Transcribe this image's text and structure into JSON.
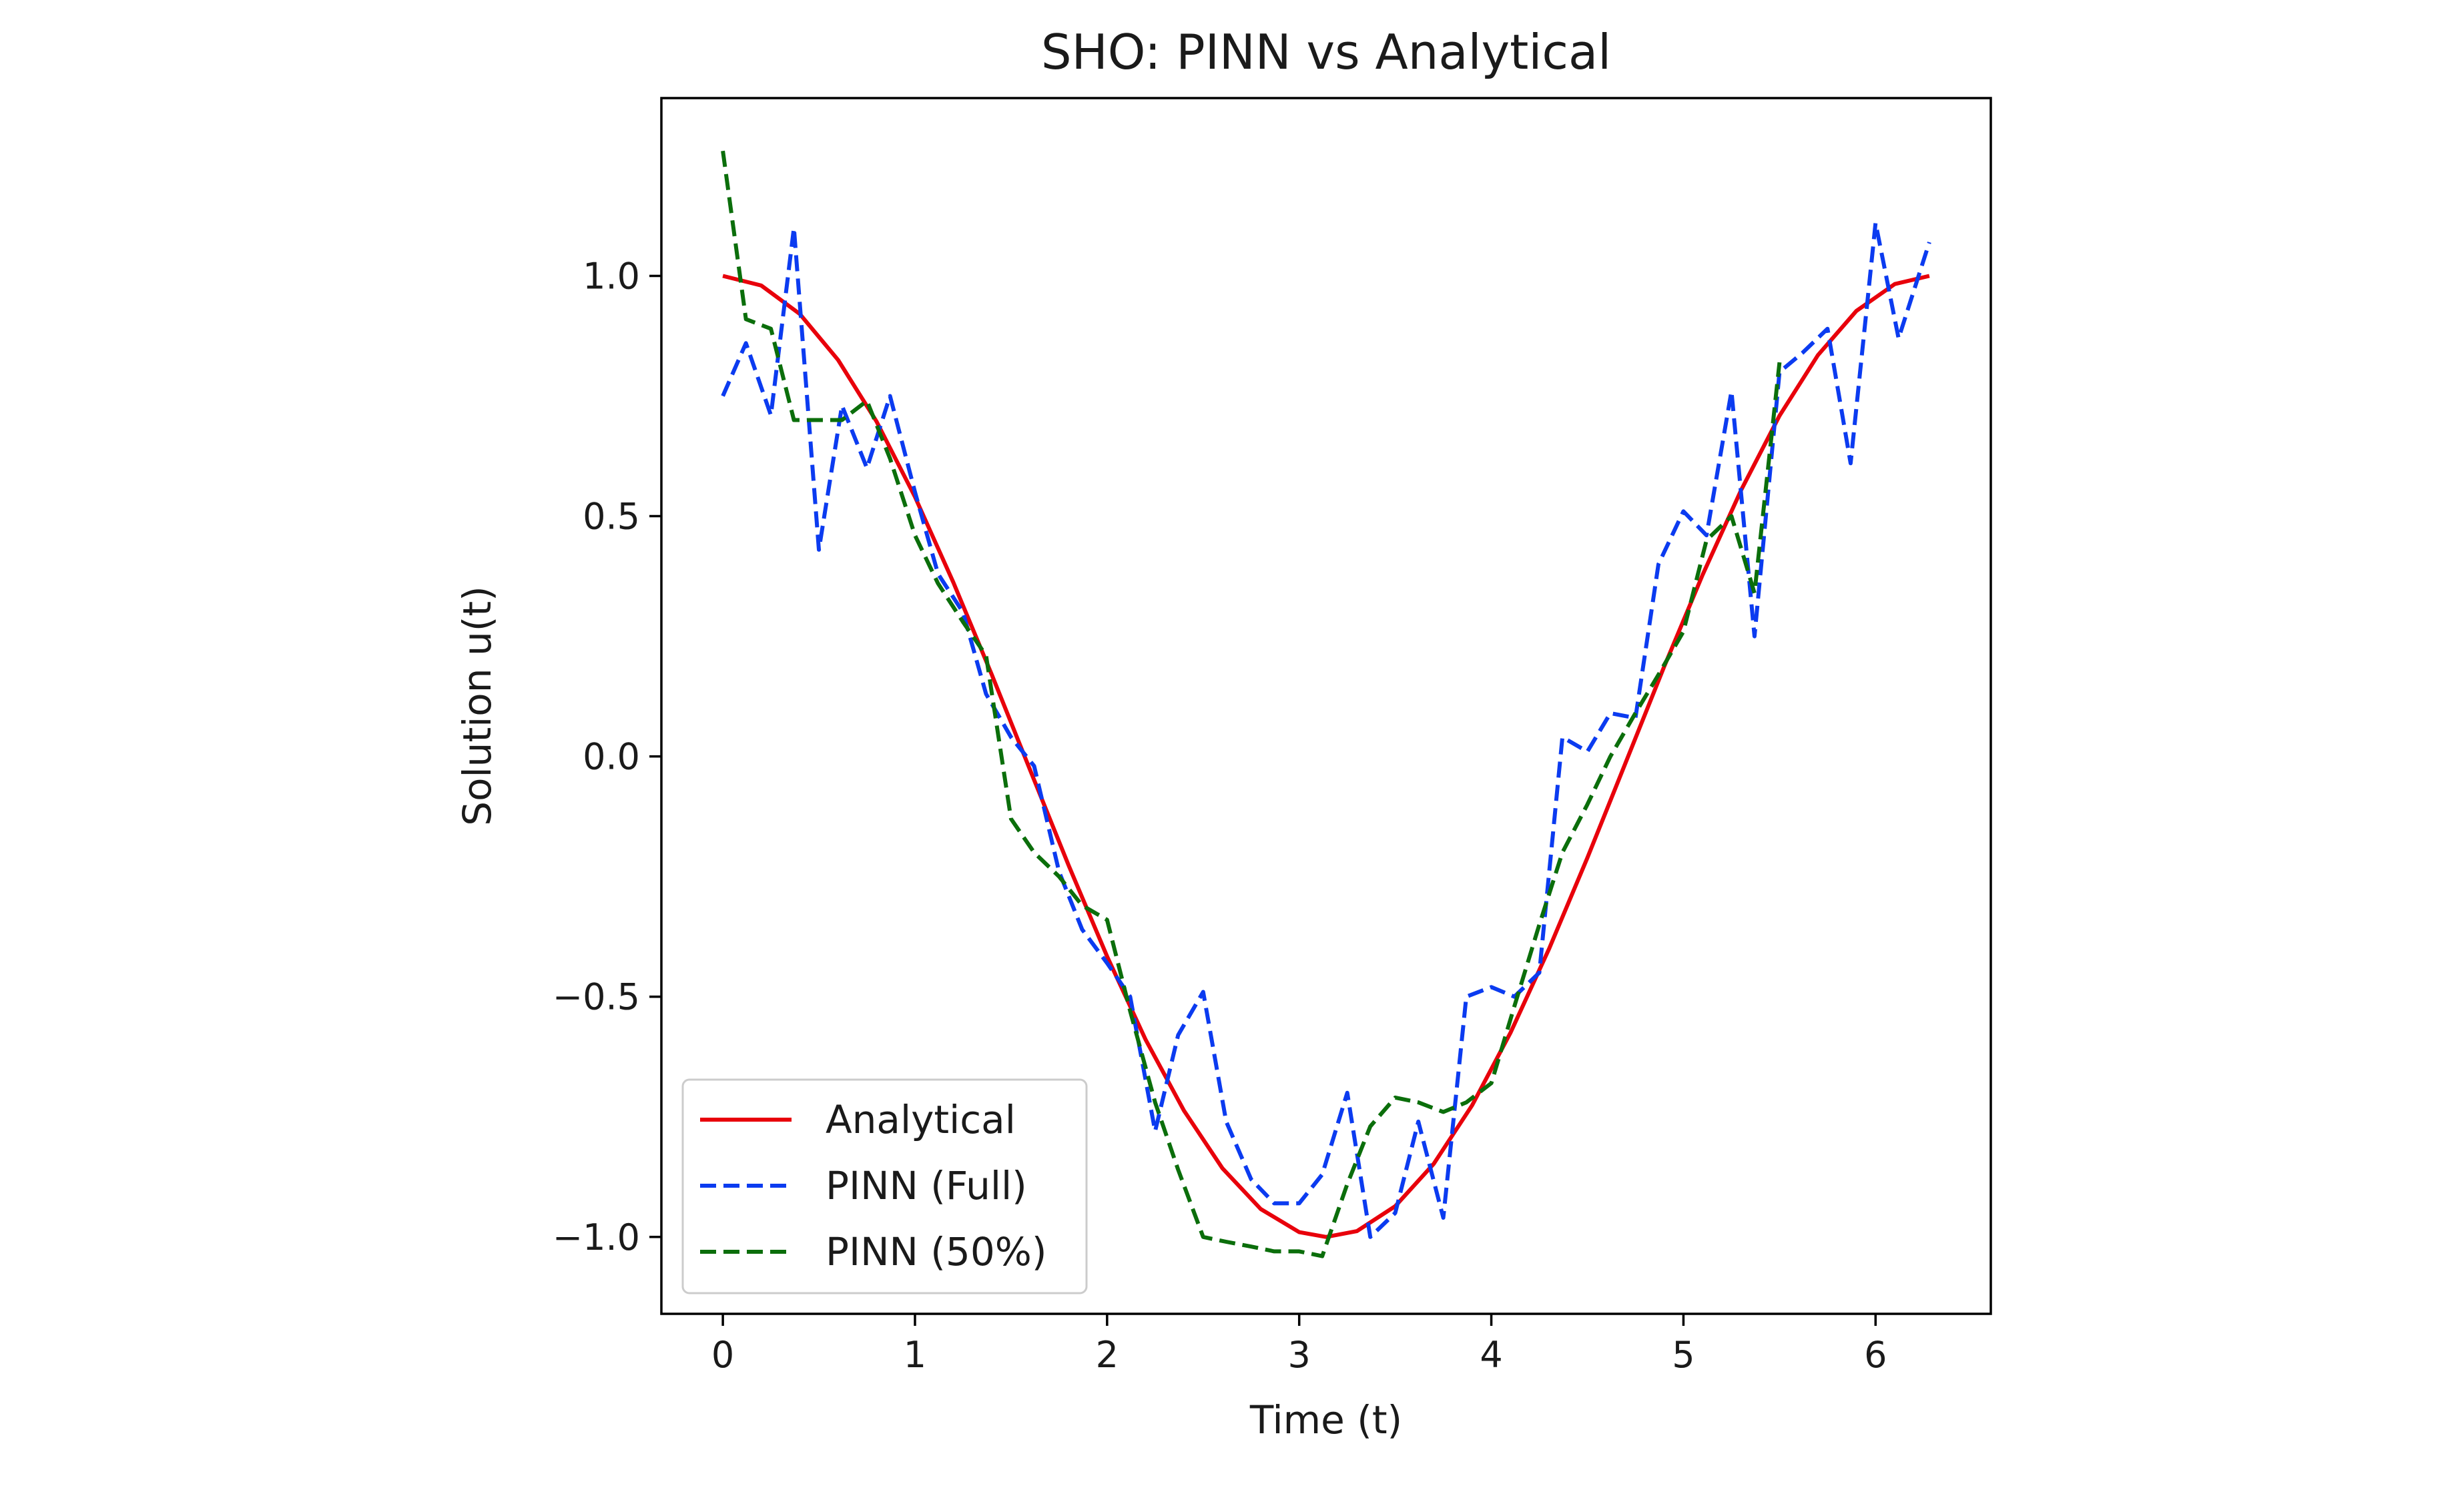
{
  "chart_data": {
    "type": "line",
    "title": "SHO: PINN vs Analytical",
    "xlabel": "Time (t)",
    "ylabel": "Solution u(t)",
    "xlim": [
      -0.32,
      6.6
    ],
    "ylim": [
      -1.16,
      1.37
    ],
    "x_ticks": [
      0,
      1,
      2,
      3,
      4,
      5,
      6
    ],
    "x_tick_labels": [
      "0",
      "1",
      "2",
      "3",
      "4",
      "5",
      "6"
    ],
    "y_ticks": [
      -1.0,
      -0.5,
      0.0,
      0.5,
      1.0
    ],
    "y_tick_labels": [
      "−1.0",
      "−0.5",
      "0.0",
      "0.5",
      "1.0"
    ],
    "grid": false,
    "legend_position": "lower-left",
    "series": [
      {
        "name": "Analytical",
        "color": "#e8000b",
        "style": "solid",
        "x": [
          0,
          0.2,
          0.4,
          0.6,
          0.8,
          1.0,
          1.2,
          1.4,
          1.6,
          1.8,
          2.0,
          2.2,
          2.4,
          2.6,
          2.8,
          3.0,
          3.14,
          3.3,
          3.5,
          3.7,
          3.9,
          4.1,
          4.3,
          4.5,
          4.7,
          4.9,
          5.1,
          5.3,
          5.5,
          5.7,
          5.9,
          6.1,
          6.28
        ],
        "y": [
          1.0,
          0.98,
          0.921,
          0.825,
          0.697,
          0.54,
          0.362,
          0.17,
          -0.029,
          -0.227,
          -0.416,
          -0.589,
          -0.737,
          -0.857,
          -0.942,
          -0.99,
          -1.0,
          -0.988,
          -0.936,
          -0.848,
          -0.726,
          -0.575,
          -0.401,
          -0.211,
          -0.012,
          0.187,
          0.378,
          0.554,
          0.709,
          0.835,
          0.927,
          0.983,
          1.0
        ]
      },
      {
        "name": "PINN (Full)",
        "color": "#0b3bf0",
        "style": "dashed",
        "x": [
          0,
          0.12,
          0.25,
          0.37,
          0.5,
          0.62,
          0.75,
          0.87,
          1.0,
          1.12,
          1.25,
          1.37,
          1.5,
          1.62,
          1.75,
          1.87,
          2.0,
          2.12,
          2.25,
          2.37,
          2.5,
          2.62,
          2.75,
          2.87,
          3.0,
          3.12,
          3.25,
          3.37,
          3.5,
          3.62,
          3.75,
          3.87,
          4.0,
          4.12,
          4.25,
          4.37,
          4.5,
          4.62,
          4.75,
          4.87,
          5.0,
          5.12,
          5.25,
          5.37,
          5.5,
          5.62,
          5.75,
          5.87,
          6.0,
          6.12,
          6.28
        ],
        "y": [
          0.75,
          0.86,
          0.71,
          1.1,
          0.43,
          0.73,
          0.6,
          0.75,
          0.55,
          0.38,
          0.3,
          0.13,
          0.04,
          -0.02,
          -0.24,
          -0.36,
          -0.43,
          -0.5,
          -0.78,
          -0.58,
          -0.49,
          -0.76,
          -0.88,
          -0.93,
          -0.93,
          -0.87,
          -0.7,
          -1.0,
          -0.95,
          -0.76,
          -0.96,
          -0.5,
          -0.48,
          -0.5,
          -0.45,
          0.04,
          0.01,
          0.09,
          0.08,
          0.4,
          0.51,
          0.46,
          0.76,
          0.25,
          0.8,
          0.84,
          0.89,
          0.61,
          1.11,
          0.87,
          1.07
        ]
      },
      {
        "name": "PINN (50%)",
        "color": "#0b6e0b",
        "style": "dashed",
        "x": [
          0,
          0.12,
          0.25,
          0.37,
          0.5,
          0.62,
          0.75,
          0.87,
          1.0,
          1.12,
          1.25,
          1.37,
          1.5,
          1.62,
          1.75,
          1.87,
          2.0,
          2.12,
          2.25,
          2.37,
          2.5,
          2.62,
          2.75,
          2.87,
          3.0,
          3.12,
          3.25,
          3.37,
          3.5,
          3.62,
          3.75,
          3.87,
          4.0,
          4.12,
          4.25,
          4.37,
          4.5,
          4.62,
          4.75,
          4.87,
          5.0,
          5.12,
          5.25,
          5.37,
          5.5
        ],
        "y": [
          1.26,
          0.91,
          0.89,
          0.7,
          0.7,
          0.7,
          0.74,
          0.62,
          0.46,
          0.36,
          0.28,
          0.21,
          -0.13,
          -0.2,
          -0.25,
          -0.31,
          -0.34,
          -0.53,
          -0.72,
          -0.86,
          -1.0,
          -1.01,
          -1.02,
          -1.03,
          -1.03,
          -1.04,
          -0.89,
          -0.77,
          -0.71,
          -0.72,
          -0.74,
          -0.72,
          -0.68,
          -0.52,
          -0.35,
          -0.2,
          -0.1,
          0.0,
          0.09,
          0.17,
          0.26,
          0.45,
          0.5,
          0.34,
          0.82
        ]
      }
    ]
  }
}
